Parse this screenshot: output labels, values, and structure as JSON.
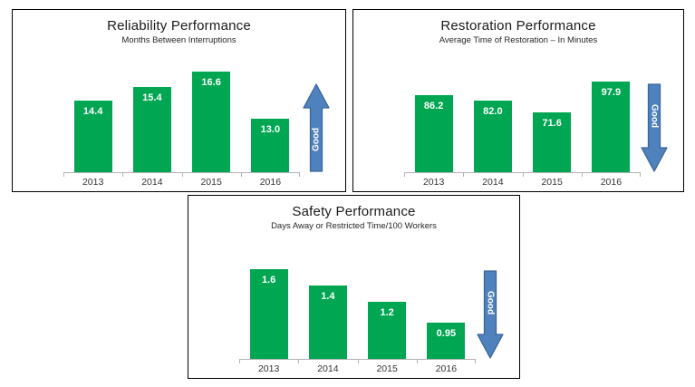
{
  "page": {
    "background": "#ffffff"
  },
  "colors": {
    "bar": "#00a651",
    "bar_label": "#ffffff",
    "arrow_fill": "#4f81bd",
    "arrow_stroke": "#3a679c",
    "arrow_label": "#ffffff",
    "axis": "#b3b3b3",
    "panel_border": "#000000"
  },
  "chart_data": [
    {
      "type": "bar",
      "title": "Reliability Performance",
      "subtitle": "Months Between Interruptions",
      "categories": [
        "2013",
        "2014",
        "2015",
        "2016"
      ],
      "values": [
        14.4,
        15.4,
        16.6,
        13.0
      ],
      "value_labels": [
        "14.4",
        "15.4",
        "16.6",
        "13.0"
      ],
      "ylim": [
        9,
        18
      ],
      "grid": false,
      "legend": "none",
      "good_arrow": {
        "direction": "up",
        "label": "Good"
      }
    },
    {
      "type": "bar",
      "title": "Restoration Performance",
      "subtitle": "Average Time of Restoration – In Minutes",
      "categories": [
        "2013",
        "2014",
        "2015",
        "2016"
      ],
      "values": [
        86.2,
        82.0,
        71.6,
        97.9
      ],
      "value_labels": [
        "86.2",
        "82.0",
        "71.6",
        "97.9"
      ],
      "ylim": [
        20,
        123
      ],
      "grid": false,
      "legend": "none",
      "good_arrow": {
        "direction": "down",
        "label": "Good"
      }
    },
    {
      "type": "bar",
      "title": "Safety Performance",
      "subtitle": "Days Away or Restricted Time/100 Workers",
      "categories": [
        "2013",
        "2014",
        "2015",
        "2016"
      ],
      "values": [
        1.6,
        1.4,
        1.2,
        0.95
      ],
      "value_labels": [
        "1.6",
        "1.4",
        "1.2",
        "0.95"
      ],
      "ylim": [
        0.5,
        1.97
      ],
      "grid": false,
      "legend": "none",
      "good_arrow": {
        "direction": "down",
        "label": "Good"
      }
    }
  ]
}
